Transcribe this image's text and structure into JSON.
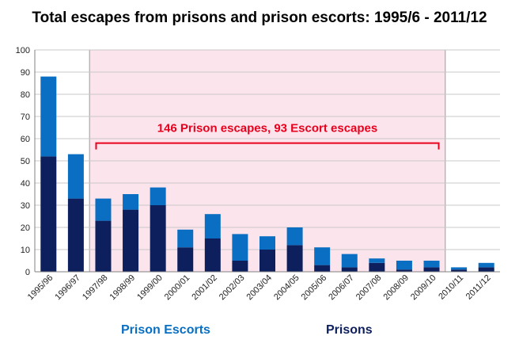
{
  "chart_data": {
    "type": "bar",
    "stacked": true,
    "title": "Total escapes from prisons and prison escorts: 1995/6 - 2011/12",
    "xlabel": "",
    "ylabel": "",
    "ylim": [
      0,
      100
    ],
    "yticks": [
      0,
      10,
      20,
      30,
      40,
      50,
      60,
      70,
      80,
      90,
      100
    ],
    "grid": true,
    "categories": [
      "1995/96",
      "1996/97",
      "1997/98",
      "1998/99",
      "1999/00",
      "2000/01",
      "2001/02",
      "2002/03",
      "2003/04",
      "2004/05",
      "2005/06",
      "2006/07",
      "2007/08",
      "2008/09",
      "2009/10",
      "2010/11",
      "2011/12"
    ],
    "series": [
      {
        "name": "Prisons",
        "color": "#0d1f5c",
        "values": [
          52,
          33,
          23,
          28,
          30,
          11,
          15,
          5,
          10,
          12,
          3,
          2,
          4,
          1,
          2,
          1,
          2
        ]
      },
      {
        "name": "Prison Escorts",
        "color": "#0a6fc2",
        "values": [
          36,
          20,
          10,
          7,
          8,
          8,
          11,
          12,
          6,
          8,
          8,
          6,
          2,
          4,
          3,
          1,
          2
        ]
      }
    ],
    "highlight_region": {
      "from": "1997/98",
      "to": "2009/10",
      "color": "#fce4ec"
    },
    "annotation": {
      "text": "146 Prison escapes, 93 Escort escapes",
      "color": "#e8001c",
      "from": "1997/98",
      "to": "2009/10",
      "y": 58
    },
    "legend_placement": "bottom"
  }
}
